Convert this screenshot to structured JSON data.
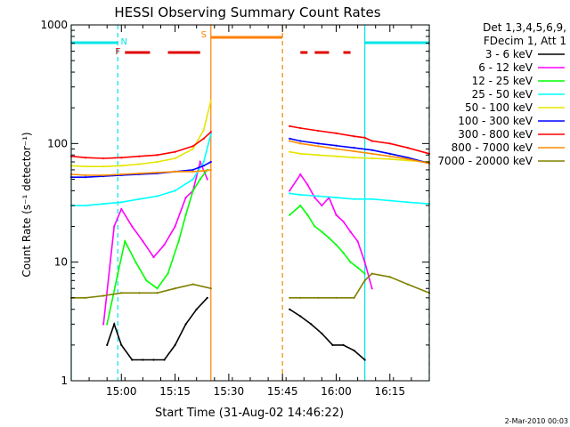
{
  "chart_data": {
    "type": "line",
    "title": "HESSI Observing Summary Count Rates",
    "xlabel": "Start Time (31-Aug-02 14:46:22)",
    "ylabel": "Count Rate (s⁻¹ detector⁻¹)",
    "ylog": true,
    "ylim": [
      1,
      1000
    ],
    "xlim": [
      "14:46",
      "16:26"
    ],
    "x_ticks": [
      "15:00",
      "15:15",
      "15:30",
      "15:45",
      "16:00",
      "16:15"
    ],
    "y_ticks": [
      "1",
      "10",
      "100",
      "1000"
    ],
    "legend_header": [
      "Det 1,3,4,5,6,9,",
      "FDecim 1, Att 1"
    ],
    "legend_position": "right",
    "footer_date": "2-Mar-2010 00:03",
    "flags": {
      "N": {
        "label": "N",
        "color": "#00e5e5",
        "segments": [
          [
            "14:46",
            "14:59"
          ],
          [
            "16:08",
            "16:26"
          ]
        ]
      },
      "F": {
        "label": "F",
        "color": "#e00000",
        "segments": [
          [
            "15:01",
            "15:08"
          ],
          [
            "15:13",
            "15:22"
          ],
          [
            "15:50",
            "15:52"
          ],
          [
            "15:54",
            "15:58"
          ],
          [
            "16:02",
            "16:04"
          ]
        ]
      },
      "S": {
        "label": "S",
        "color": "#ff7f00",
        "segments": [
          [
            "15:25",
            "15:45"
          ]
        ]
      }
    },
    "vertical_markers": [
      {
        "time": "14:46",
        "color": "#00e5e5",
        "style": "solid"
      },
      {
        "time": "14:59",
        "color": "#00e5e5",
        "style": "dashed"
      },
      {
        "time": "15:25",
        "color": "#ff7f00",
        "style": "solid"
      },
      {
        "time": "15:45",
        "color": "#ff7f00",
        "style": "dashed"
      },
      {
        "time": "16:08",
        "color": "#00e5e5",
        "style": "solid"
      },
      {
        "time": "16:26",
        "color": "#00e5e5",
        "style": "dashed"
      }
    ],
    "gap": [
      "15:25",
      "15:47"
    ],
    "series": [
      {
        "name": "3 - 6 keV",
        "color": "#000000",
        "x": [
          "14:56",
          "14:58",
          "15:00",
          "15:03",
          "15:06",
          "15:09",
          "15:12",
          "15:15",
          "15:18",
          "15:21",
          "15:24",
          "15:47",
          "15:50",
          "15:53",
          "15:56",
          "15:59",
          "16:02",
          "16:05",
          "16:08"
        ],
        "y": [
          2,
          3,
          2,
          1.5,
          1.5,
          1.5,
          1.5,
          2,
          3,
          4,
          5,
          4,
          3.5,
          3,
          2.5,
          2,
          2,
          1.8,
          1.5
        ]
      },
      {
        "name": "6 - 12 keV",
        "color": "#ff00ff",
        "x": [
          "14:55",
          "14:58",
          "15:00",
          "15:03",
          "15:06",
          "15:09",
          "15:12",
          "15:15",
          "15:18",
          "15:20",
          "15:22",
          "15:24",
          "15:47",
          "15:50",
          "15:52",
          "15:54",
          "15:56",
          "15:58",
          "16:00",
          "16:02",
          "16:04",
          "16:06",
          "16:08",
          "16:10"
        ],
        "y": [
          3,
          20,
          28,
          20,
          15,
          11,
          14,
          20,
          35,
          40,
          70,
          50,
          40,
          55,
          45,
          35,
          30,
          35,
          25,
          22,
          18,
          15,
          10,
          6
        ]
      },
      {
        "name": "12 - 25 keV",
        "color": "#00ff00",
        "x": [
          "14:56",
          "14:59",
          "15:01",
          "15:04",
          "15:07",
          "15:10",
          "15:13",
          "15:16",
          "15:18",
          "15:20",
          "15:22",
          "15:24",
          "15:47",
          "15:50",
          "15:52",
          "15:54",
          "15:56",
          "15:58",
          "16:00",
          "16:02",
          "16:04",
          "16:06",
          "16:08"
        ],
        "y": [
          3,
          8,
          15,
          10,
          7,
          6,
          8,
          15,
          25,
          40,
          50,
          60,
          25,
          30,
          25,
          20,
          18,
          16,
          14,
          12,
          10,
          9,
          8
        ]
      },
      {
        "name": "25 - 50 keV",
        "color": "#00ffff",
        "x": [
          "14:46",
          "14:50",
          "14:55",
          "15:00",
          "15:05",
          "15:10",
          "15:15",
          "15:20",
          "15:23",
          "15:25",
          "15:47",
          "15:50",
          "15:55",
          "16:00",
          "16:05",
          "16:10",
          "16:15",
          "16:20",
          "16:26"
        ],
        "y": [
          30,
          30,
          31,
          32,
          34,
          36,
          40,
          50,
          70,
          120,
          38,
          37,
          36,
          35,
          34,
          34,
          33,
          32,
          31
        ]
      },
      {
        "name": "50 - 100 keV",
        "color": "#e5e500",
        "x": [
          "14:46",
          "14:50",
          "14:55",
          "15:00",
          "15:05",
          "15:10",
          "15:15",
          "15:20",
          "15:23",
          "15:25",
          "15:47",
          "15:50",
          "15:55",
          "16:00",
          "16:05",
          "16:10",
          "16:15",
          "16:20",
          "16:26"
        ],
        "y": [
          65,
          64,
          64,
          65,
          67,
          70,
          75,
          90,
          130,
          230,
          85,
          82,
          80,
          78,
          76,
          75,
          74,
          72,
          70
        ]
      },
      {
        "name": "100 - 300 keV",
        "color": "#0000ff",
        "x": [
          "14:46",
          "14:50",
          "14:55",
          "15:00",
          "15:05",
          "15:10",
          "15:15",
          "15:20",
          "15:23",
          "15:25",
          "15:47",
          "15:50",
          "15:55",
          "16:00",
          "16:05",
          "16:10",
          "16:15",
          "16:20",
          "16:26"
        ],
        "y": [
          52,
          52,
          53,
          54,
          55,
          56,
          58,
          60,
          65,
          70,
          110,
          105,
          100,
          96,
          92,
          88,
          82,
          76,
          68
        ]
      },
      {
        "name": "300 - 800 keV",
        "color": "#ff0000",
        "x": [
          "14:46",
          "14:50",
          "14:55",
          "15:00",
          "15:05",
          "15:10",
          "15:15",
          "15:20",
          "15:23",
          "15:25",
          "15:47",
          "15:50",
          "15:55",
          "16:00",
          "16:05",
          "16:08",
          "16:10",
          "16:15",
          "16:20",
          "16:26"
        ],
        "y": [
          78,
          76,
          75,
          76,
          78,
          80,
          85,
          95,
          110,
          125,
          140,
          135,
          128,
          122,
          115,
          112,
          105,
          100,
          92,
          82
        ]
      },
      {
        "name": "800 - 7000 keV",
        "color": "#ff8c00",
        "x": [
          "14:46",
          "14:50",
          "14:55",
          "15:00",
          "15:05",
          "15:10",
          "15:15",
          "15:20",
          "15:23",
          "15:25",
          "15:47",
          "15:50",
          "15:55",
          "16:00",
          "16:05",
          "16:10",
          "16:15",
          "16:20",
          "16:26"
        ],
        "y": [
          55,
          54,
          54,
          55,
          56,
          57,
          58,
          58,
          59,
          60,
          105,
          100,
          95,
          90,
          86,
          82,
          78,
          74,
          68
        ]
      },
      {
        "name": "7000 - 20000 keV",
        "color": "#808000",
        "x": [
          "14:46",
          "14:50",
          "14:55",
          "15:00",
          "15:05",
          "15:10",
          "15:15",
          "15:20",
          "15:25",
          "15:47",
          "15:50",
          "15:55",
          "16:00",
          "16:05",
          "16:08",
          "16:10",
          "16:15",
          "16:20",
          "16:26"
        ],
        "y": [
          5,
          5,
          5.2,
          5.5,
          5.5,
          5.5,
          6,
          6.5,
          6,
          5,
          5,
          5,
          5,
          5,
          7,
          8,
          7.5,
          6.5,
          5.5
        ]
      }
    ]
  }
}
